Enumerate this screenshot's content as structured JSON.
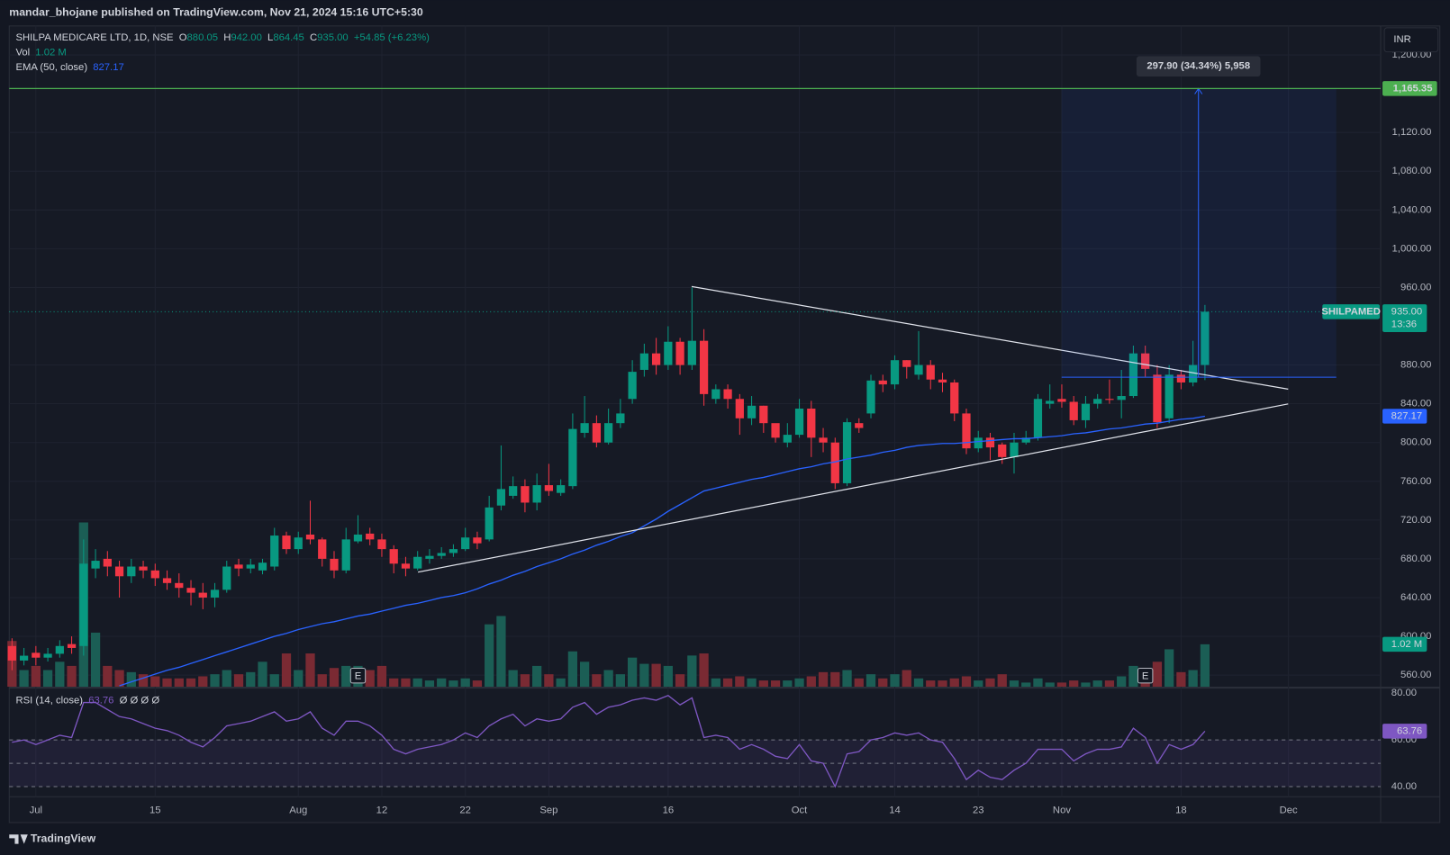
{
  "chart_data": {
    "type": "candlestick",
    "header": "mandar_bhojane published on TradingView.com, Nov 21, 2024 15:16 UTC+5:30",
    "symbol": "SHILPA MEDICARE LTD, 1D, NSE",
    "legend": {
      "o_label": "O",
      "o": "880.05",
      "h_label": "H",
      "h": "942.00",
      "l_label": "L",
      "l": "864.45",
      "c_label": "C",
      "c": "935.00",
      "change": "+54.85 (+6.23%)",
      "vol_label": "Vol",
      "vol": "1.02 M",
      "ema_label": "EMA (50, close)",
      "ema": "827.17",
      "rsi_label": "RSI (14, close)",
      "rsi": "63.76",
      "rsi_extra": "Ø Ø Ø Ø"
    },
    "currency": "INR",
    "footer": "TradingView",
    "earnings_marker": "E",
    "earnings_at": [
      29,
      95
    ],
    "open": [
      590,
      575,
      583,
      578,
      582,
      592,
      590,
      670,
      680,
      672,
      662,
      672,
      668,
      660,
      655,
      650,
      645,
      640,
      648,
      674,
      670,
      668,
      672,
      704,
      690,
      705,
      700,
      680,
      668,
      698,
      706,
      700,
      690,
      675,
      670,
      680,
      683,
      686,
      690,
      702,
      700,
      735,
      745,
      755,
      738,
      756,
      748,
      755,
      810,
      820,
      800,
      820,
      845,
      875,
      892,
      880,
      904,
      880,
      905,
      845,
      855,
      845,
      825,
      838,
      820,
      800,
      808,
      835,
      805,
      800,
      758,
      820,
      830,
      864,
      860,
      885,
      870,
      880,
      865,
      862,
      830,
      794,
      805,
      798,
      785,
      800,
      805,
      840,
      845,
      842,
      823,
      840,
      845,
      844,
      848,
      892,
      870,
      825,
      870,
      862,
      880.05
    ],
    "high": [
      598,
      588,
      590,
      588,
      596,
      600,
      700,
      690,
      688,
      678,
      680,
      678,
      675,
      668,
      665,
      658,
      655,
      655,
      678,
      680,
      680,
      680,
      712,
      708,
      708,
      740,
      702,
      688,
      712,
      725,
      712,
      706,
      694,
      682,
      688,
      690,
      692,
      695,
      712,
      708,
      745,
      797,
      765,
      762,
      768,
      778,
      762,
      830,
      848,
      828,
      835,
      845,
      885,
      902,
      908,
      920,
      908,
      960,
      917,
      860,
      860,
      850,
      848,
      838,
      818,
      820,
      845,
      843,
      815,
      805,
      825,
      825,
      870,
      870,
      890,
      885,
      915,
      885,
      872,
      865,
      835,
      812,
      810,
      800,
      810,
      812,
      850,
      860,
      860,
      848,
      848,
      850,
      865,
      875,
      900,
      900,
      880,
      880,
      875,
      905,
      942
    ],
    "low": [
      565,
      570,
      570,
      574,
      578,
      582,
      580,
      660,
      662,
      640,
      655,
      660,
      652,
      648,
      640,
      632,
      628,
      630,
      645,
      662,
      665,
      664,
      668,
      685,
      685,
      695,
      672,
      660,
      665,
      696,
      694,
      682,
      665,
      662,
      668,
      675,
      680,
      682,
      688,
      690,
      698,
      730,
      742,
      728,
      730,
      745,
      745,
      752,
      805,
      795,
      798,
      815,
      840,
      868,
      870,
      875,
      870,
      875,
      838,
      840,
      835,
      808,
      818,
      810,
      800,
      795,
      805,
      785,
      790,
      752,
      755,
      810,
      825,
      852,
      855,
      866,
      865,
      855,
      852,
      822,
      788,
      790,
      782,
      778,
      768,
      798,
      802,
      835,
      836,
      818,
      815,
      835,
      840,
      825,
      846,
      868,
      815,
      820,
      855,
      858,
      864.45
    ],
    "close": [
      575,
      580,
      578,
      582,
      590,
      588,
      675,
      678,
      672,
      662,
      672,
      668,
      660,
      655,
      650,
      645,
      640,
      648,
      672,
      670,
      674,
      676,
      704,
      690,
      702,
      700,
      680,
      668,
      700,
      705,
      700,
      690,
      675,
      670,
      682,
      683,
      686,
      690,
      702,
      696,
      733,
      752,
      755,
      738,
      756,
      750,
      756,
      814,
      820,
      800,
      820,
      830,
      873,
      892,
      880,
      904,
      880,
      905,
      850,
      855,
      845,
      825,
      838,
      820,
      805,
      808,
      835,
      805,
      800,
      758,
      821,
      815,
      864,
      860,
      885,
      878,
      880,
      865,
      862,
      830,
      794,
      805,
      795,
      785,
      800,
      805,
      845,
      843,
      842,
      823,
      840,
      845,
      844,
      848,
      892,
      876,
      821,
      870,
      862,
      880,
      935
    ],
    "volume": [
      1.1,
      0.4,
      0.5,
      0.4,
      0.6,
      0.5,
      3.95,
      1.3,
      0.5,
      0.4,
      0.35,
      0.3,
      0.25,
      0.2,
      0.2,
      0.2,
      0.25,
      0.3,
      0.4,
      0.3,
      0.35,
      0.6,
      0.3,
      0.8,
      0.4,
      0.8,
      0.3,
      0.45,
      0.5,
      0.5,
      0.4,
      0.5,
      0.2,
      0.2,
      0.2,
      0.15,
      0.2,
      0.15,
      0.2,
      0.15,
      1.5,
      1.7,
      0.4,
      0.3,
      0.5,
      0.3,
      0.2,
      0.85,
      0.6,
      0.3,
      0.4,
      0.3,
      0.7,
      0.55,
      0.55,
      0.5,
      0.3,
      0.75,
      0.8,
      0.2,
      0.2,
      0.25,
      0.2,
      0.15,
      0.15,
      0.15,
      0.2,
      0.25,
      0.35,
      0.35,
      0.4,
      0.2,
      0.3,
      0.2,
      0.3,
      0.4,
      0.2,
      0.15,
      0.15,
      0.2,
      0.25,
      0.15,
      0.2,
      0.3,
      0.15,
      0.1,
      0.2,
      0.1,
      0.1,
      0.15,
      0.1,
      0.15,
      0.15,
      0.25,
      0.5,
      0.3,
      0.6,
      0.9,
      0.35,
      0.4,
      1.02
    ],
    "ema": [
      null,
      null,
      null,
      null,
      null,
      null,
      null,
      null,
      null,
      549,
      553,
      557,
      561,
      565,
      568,
      572,
      576,
      580,
      584,
      588,
      592,
      596,
      600,
      603,
      607,
      610,
      613,
      615,
      618,
      621,
      623,
      626,
      629,
      632,
      634,
      637,
      640,
      642,
      645,
      649,
      654,
      658,
      663,
      667,
      672,
      676,
      680,
      685,
      689,
      694,
      698,
      703,
      707,
      714,
      721,
      729,
      736,
      743,
      750,
      753,
      756,
      759,
      762,
      764,
      767,
      770,
      773,
      775,
      778,
      780,
      783,
      785,
      787,
      790,
      792,
      795,
      797,
      798,
      799,
      799,
      800,
      801,
      802,
      803,
      804,
      804,
      805,
      806,
      807,
      809,
      810,
      812,
      814,
      815,
      817,
      819,
      820,
      822,
      824,
      825,
      827.17
    ],
    "rsi": [
      59,
      60,
      58,
      60,
      62,
      61,
      76,
      76,
      73,
      70,
      69,
      67,
      65,
      64,
      62,
      59,
      57,
      61,
      66,
      67,
      68,
      70,
      72,
      68,
      69,
      72,
      65,
      62,
      68,
      68,
      66,
      62,
      56,
      54,
      56,
      57,
      58,
      60,
      63,
      61,
      66,
      69,
      71,
      66,
      69,
      68,
      69,
      74,
      76,
      71,
      74,
      75,
      77,
      78,
      77,
      79,
      75,
      78,
      61,
      62,
      61,
      56,
      58,
      56,
      53,
      52,
      58,
      51,
      50,
      40,
      54,
      55,
      60,
      61,
      63,
      62,
      63,
      60,
      59,
      52,
      43,
      47,
      44,
      43,
      47,
      50,
      56,
      56,
      56,
      51,
      54,
      56,
      56,
      57,
      65,
      61,
      50,
      58,
      56,
      58,
      63.76
    ],
    "colors": {
      "up": "#089981",
      "down": "#f23645",
      "vol_up": "#1b5e55",
      "vol_down": "#7a2a33",
      "ema": "#2962ff",
      "rsi": "#7e57c2",
      "target": "#4caf50"
    },
    "ylim": [
      548,
      1228
    ],
    "yticks": [
      {
        "value": 560,
        "label": "560.00"
      },
      {
        "value": 600,
        "label": "600.00"
      },
      {
        "value": 640,
        "label": "640.00"
      },
      {
        "value": 680,
        "label": "680.00"
      },
      {
        "value": 720,
        "label": "720.00"
      },
      {
        "value": 760,
        "label": "760.00"
      },
      {
        "value": 800,
        "label": "800.00"
      },
      {
        "value": 840,
        "label": "840.00"
      },
      {
        "value": 880,
        "label": "880.00"
      },
      {
        "value": 960,
        "label": "960.00"
      },
      {
        "value": 1000,
        "label": "1,000.00"
      },
      {
        "value": 1040,
        "label": "1,040.00"
      },
      {
        "value": 1080,
        "label": "1,080.00"
      },
      {
        "value": 1120,
        "label": "1,120.00"
      },
      {
        "value": 1200,
        "label": "1,200.00"
      }
    ],
    "rsi_ylim": [
      35.7,
      80
    ],
    "rsi_ticks": [
      {
        "value": 80,
        "label": "80.00"
      },
      {
        "value": 60,
        "label": "60.00"
      },
      {
        "value": 40,
        "label": "40.00"
      }
    ],
    "rsi_bands": [
      60,
      50,
      40
    ],
    "xticks": [
      {
        "value": 2,
        "label": "Jul"
      },
      {
        "value": 12,
        "label": "15"
      },
      {
        "value": 24,
        "label": "Aug"
      },
      {
        "value": 31,
        "label": "12"
      },
      {
        "value": 38,
        "label": "22"
      },
      {
        "value": 45,
        "label": "Sep"
      },
      {
        "value": 55,
        "label": "16"
      },
      {
        "value": 66,
        "label": "Oct"
      },
      {
        "value": 74,
        "label": "14"
      },
      {
        "value": 81,
        "label": "23"
      },
      {
        "value": 88,
        "label": "Nov"
      },
      {
        "value": 98,
        "label": "18"
      },
      {
        "value": 107,
        "label": "Dec"
      }
    ],
    "grid": true,
    "target": {
      "value": 1165.35,
      "label": "1,165.35"
    },
    "last": {
      "value": 935,
      "label": "935.00",
      "ticker": "SHILPAMED",
      "countdown": "13:36"
    },
    "ema_tag": {
      "value": 827.17,
      "label": "827.17"
    },
    "vol_tag": {
      "value": 1.02,
      "label": "1.02 M"
    },
    "rsi_tag": {
      "value": 63.76,
      "label": "63.76"
    },
    "measure": {
      "from": 867.45,
      "to": 1165.35,
      "label": "297.90 (34.34%) 5,958"
    }
  }
}
